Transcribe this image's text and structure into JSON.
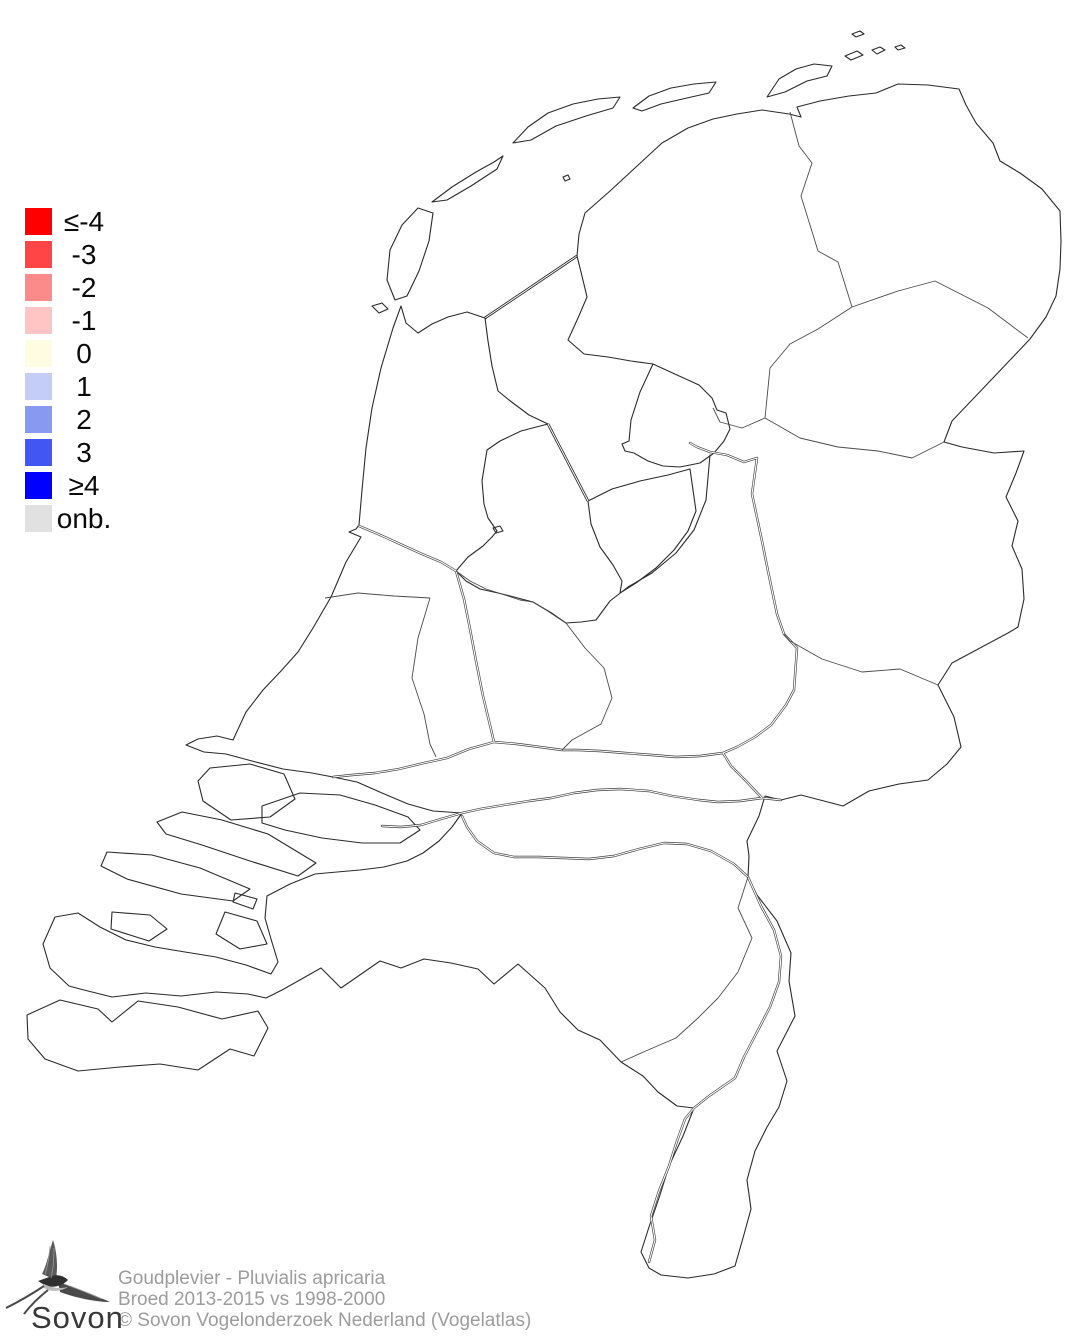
{
  "legend": {
    "items": [
      {
        "label": "≤-4",
        "color": "#FF0000"
      },
      {
        "label": "-3",
        "color": "#FF4545"
      },
      {
        "label": "-2",
        "color": "#FB8A8A"
      },
      {
        "label": "-1",
        "color": "#FFC5C5"
      },
      {
        "label": "0",
        "color": "#FFFDE1"
      },
      {
        "label": "1",
        "color": "#C3CDF6"
      },
      {
        "label": "2",
        "color": "#8799F0"
      },
      {
        "label": "3",
        "color": "#4156F2"
      },
      {
        "label": "≥4",
        "color": "#0000FF"
      },
      {
        "label": "onb.",
        "color": "#E1E1E1"
      }
    ]
  },
  "caption": {
    "species": "Goudplevier - Pluvialis apricaria",
    "period": "Broed 2013-2015 vs 1998-2000",
    "copyright": "© Sovon Vogelonderzoek Nederland (Vogelatlas)"
  },
  "logo": {
    "text": "Sovon"
  },
  "map": {
    "region": "Nederland",
    "line_color": "#2b2b2b",
    "background": "#ffffff"
  }
}
